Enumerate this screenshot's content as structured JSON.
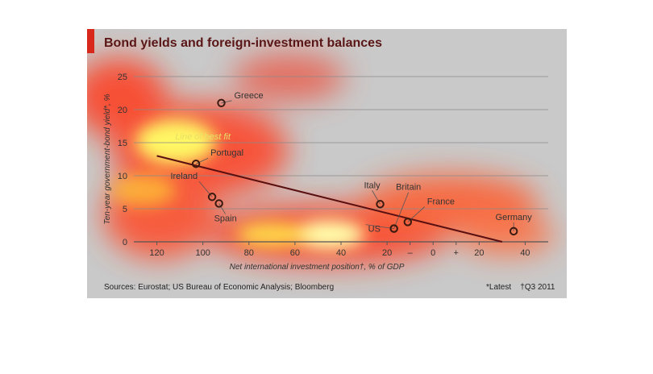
{
  "title": "Bond yields and foreign-investment balances",
  "footer": {
    "sources": "Sources: Eurostat; US Bureau of Economic Analysis; Bloomberg",
    "note_latest": "*Latest",
    "note_q3": "†Q3 2011"
  },
  "colors": {
    "accent": "#d8281c",
    "title": "#5a1616",
    "background": "#c9c9c9",
    "gridline": "#8a8a8a",
    "trend": "#5a1010",
    "heat_hot": "#ffff66",
    "heat_warm": "#ff3b1f"
  },
  "chart_data": {
    "type": "scatter",
    "title": "Bond yields and foreign-investment balances",
    "xlabel": "Net international investment position†, % of GDP",
    "ylabel": "Ten-year government-bond yield*, %",
    "xlim": [
      130,
      -50
    ],
    "ylim": [
      0,
      25
    ],
    "x_reversed": true,
    "grid": true,
    "x_ticks": [
      "120",
      "100",
      "80",
      "60",
      "40",
      "20",
      "–",
      "0",
      "+",
      "20",
      "40"
    ],
    "y_ticks": [
      "0",
      "5",
      "10",
      "15",
      "20",
      "25"
    ],
    "points": [
      {
        "label": "Greece",
        "x": 92,
        "y": 21
      },
      {
        "label": "Portugal",
        "x": 103,
        "y": 11.8
      },
      {
        "label": "Ireland",
        "x": 96,
        "y": 6.8
      },
      {
        "label": "Spain",
        "x": 93,
        "y": 5.8
      },
      {
        "label": "Italy",
        "x": 23,
        "y": 5.7
      },
      {
        "label": "Britain",
        "x": 17,
        "y": 2
      },
      {
        "label": "US",
        "x": 17,
        "y": 2
      },
      {
        "label": "France",
        "x": 11,
        "y": 3
      },
      {
        "label": "Germany",
        "x": -35,
        "y": 1.6
      }
    ],
    "trendline": {
      "label": "Line of best fit",
      "x": [
        120,
        -30
      ],
      "y": [
        13,
        0
      ]
    },
    "heatmap_overlay": true
  }
}
